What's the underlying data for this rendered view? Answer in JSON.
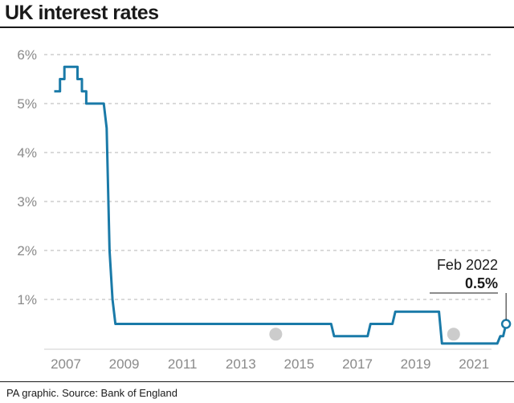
{
  "header": {
    "title": "UK interest rates"
  },
  "footer": {
    "source": "PA graphic. Source: Bank of England"
  },
  "colors": {
    "line": "#1a7aa8",
    "grid": "#b5b5b5",
    "text": "#1a1a1a",
    "tick": "#8a8a8a"
  },
  "chart_data": {
    "type": "line",
    "title": "UK interest rates",
    "xlabel": "",
    "ylabel": "",
    "ylim": [
      0,
      6
    ],
    "xlim": [
      2006.5,
      2022.2
    ],
    "y_ticks": [
      1,
      2,
      3,
      4,
      5,
      6
    ],
    "y_tick_labels": [
      "1%",
      "2%",
      "3%",
      "4%",
      "5%",
      "6%"
    ],
    "x_ticks": [
      2007,
      2009,
      2011,
      2013,
      2015,
      2017,
      2019,
      2021
    ],
    "x_tick_labels": [
      "2007",
      "2009",
      "2011",
      "2013",
      "2015",
      "2017",
      "2019",
      "2021"
    ],
    "grid": "horizontal dashed",
    "series": [
      {
        "x": [
          2006.6,
          2006.8,
          2006.8,
          2006.95,
          2006.95,
          2007.1,
          2007.1,
          2007.4,
          2007.4,
          2007.55,
          2007.55,
          2007.7,
          2007.7,
          2007.85,
          2007.85,
          2008.3,
          2008.3,
          2008.4,
          2008.5,
          2008.6,
          2008.7,
          2009.1,
          2016.1,
          2016.2,
          2017.35,
          2017.45,
          2018.2,
          2018.3,
          2019.8,
          2019.9,
          2020.4,
          2021.6,
          2021.8,
          2021.9,
          2022.0,
          2022.1
        ],
        "y": [
          5.25,
          5.25,
          5.5,
          5.5,
          5.75,
          5.75,
          5.75,
          5.75,
          5.5,
          5.5,
          5.25,
          5.25,
          5.0,
          5.0,
          5.0,
          5.0,
          5.0,
          4.5,
          2.0,
          1.0,
          0.5,
          0.5,
          0.5,
          0.25,
          0.25,
          0.5,
          0.5,
          0.75,
          0.75,
          0.1,
          0.1,
          0.1,
          0.1,
          0.25,
          0.25,
          0.5
        ]
      }
    ],
    "annotations": [
      {
        "date": "Feb 2022",
        "value": "0.5%"
      }
    ],
    "placeholder_markers": [
      {
        "x": 2014.2,
        "y": 0.29
      },
      {
        "x": 2020.3,
        "y": 0.29
      }
    ]
  }
}
